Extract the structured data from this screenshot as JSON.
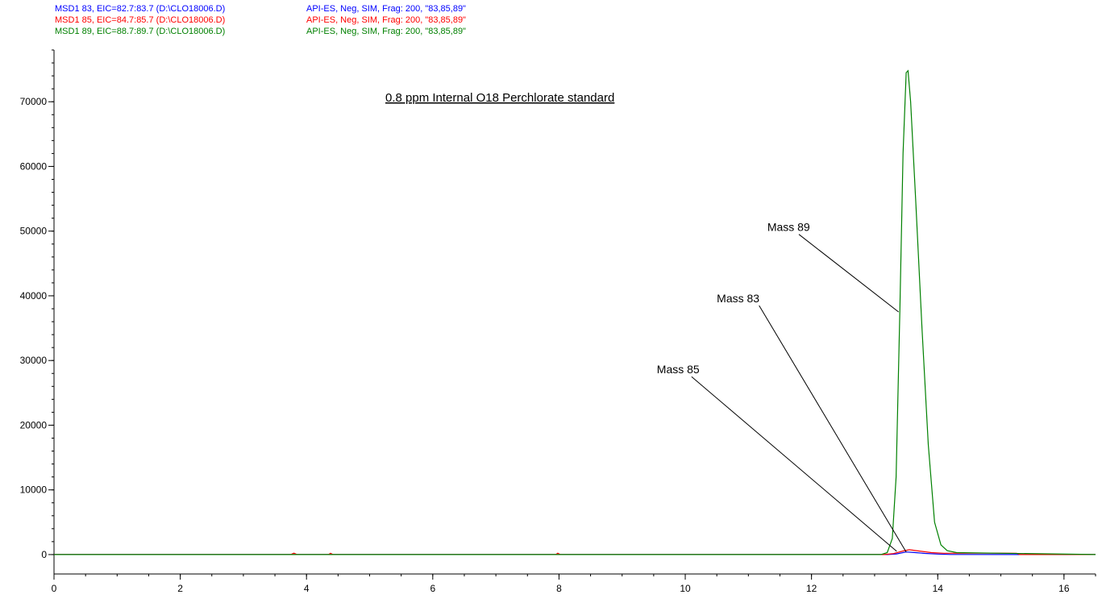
{
  "chart_data": {
    "type": "line",
    "title": "0.8 ppm Internal O18 Perchlorate standard",
    "xlim": [
      0,
      16.5
    ],
    "ylim": [
      -3000,
      78000
    ],
    "x_ticks": [
      0,
      2,
      4,
      6,
      8,
      10,
      12,
      14,
      16
    ],
    "y_ticks": [
      0,
      10000,
      20000,
      30000,
      40000,
      50000,
      60000,
      70000
    ],
    "grid": false,
    "legend_position": "top-left",
    "series": [
      {
        "name": "MSD1 83, EIC=82.7:83.7 (D:\\CLO18006.D)",
        "detail": "API-ES, Neg, SIM, Frag: 200, \"83,85,89\"",
        "color": "#0000ff",
        "points": [
          [
            0,
            0
          ],
          [
            13.2,
            0
          ],
          [
            13.35,
            100
          ],
          [
            13.5,
            400
          ],
          [
            13.65,
            300
          ],
          [
            13.8,
            180
          ],
          [
            14.0,
            80
          ],
          [
            14.2,
            20
          ],
          [
            16.5,
            0
          ]
        ]
      },
      {
        "name": "MSD1 85, EIC=84.7:85.7 (D:\\CLO18006.D)",
        "detail": "API-ES, Neg, SIM, Frag: 200, \"83,85,89\"",
        "color": "#ff0000",
        "points": [
          [
            0,
            0
          ],
          [
            3.75,
            0
          ],
          [
            3.8,
            220
          ],
          [
            3.85,
            0
          ],
          [
            4.35,
            0
          ],
          [
            4.38,
            200
          ],
          [
            4.42,
            0
          ],
          [
            7.95,
            0
          ],
          [
            7.98,
            220
          ],
          [
            8.02,
            0
          ],
          [
            13.15,
            0
          ],
          [
            13.3,
            150
          ],
          [
            13.45,
            550
          ],
          [
            13.55,
            750
          ],
          [
            13.7,
            550
          ],
          [
            13.9,
            300
          ],
          [
            14.1,
            200
          ],
          [
            14.5,
            220
          ],
          [
            15.0,
            220
          ],
          [
            15.25,
            200
          ],
          [
            15.3,
            0
          ],
          [
            16.5,
            0
          ]
        ]
      },
      {
        "name": "MSD1 89, EIC=88.7:89.7 (D:\\CLO18006.D)",
        "detail": "API-ES, Neg, SIM, Frag: 200, \"83,85,89\"",
        "color": "#008000",
        "points": [
          [
            0,
            0
          ],
          [
            13.1,
            0
          ],
          [
            13.2,
            300
          ],
          [
            13.28,
            2500
          ],
          [
            13.34,
            12000
          ],
          [
            13.4,
            38000
          ],
          [
            13.45,
            62000
          ],
          [
            13.5,
            74500
          ],
          [
            13.53,
            74800
          ],
          [
            13.57,
            70000
          ],
          [
            13.65,
            55000
          ],
          [
            13.75,
            35000
          ],
          [
            13.85,
            17000
          ],
          [
            13.95,
            5000
          ],
          [
            14.05,
            1500
          ],
          [
            14.15,
            600
          ],
          [
            14.3,
            300
          ],
          [
            16.5,
            0
          ]
        ]
      }
    ],
    "annotations": [
      {
        "text": "Mass 89",
        "x": 11.3,
        "y": 50000,
        "line_from": [
          11.8,
          49500
        ],
        "line_to": [
          13.38,
          37500
        ]
      },
      {
        "text": "Mass 83",
        "x": 10.5,
        "y": 39000,
        "line_from": [
          11.17,
          38500
        ],
        "line_to": [
          13.5,
          400
        ]
      },
      {
        "text": "Mass 85",
        "x": 9.55,
        "y": 28000,
        "line_from": [
          10.1,
          27500
        ],
        "line_to": [
          13.35,
          500
        ]
      }
    ]
  }
}
